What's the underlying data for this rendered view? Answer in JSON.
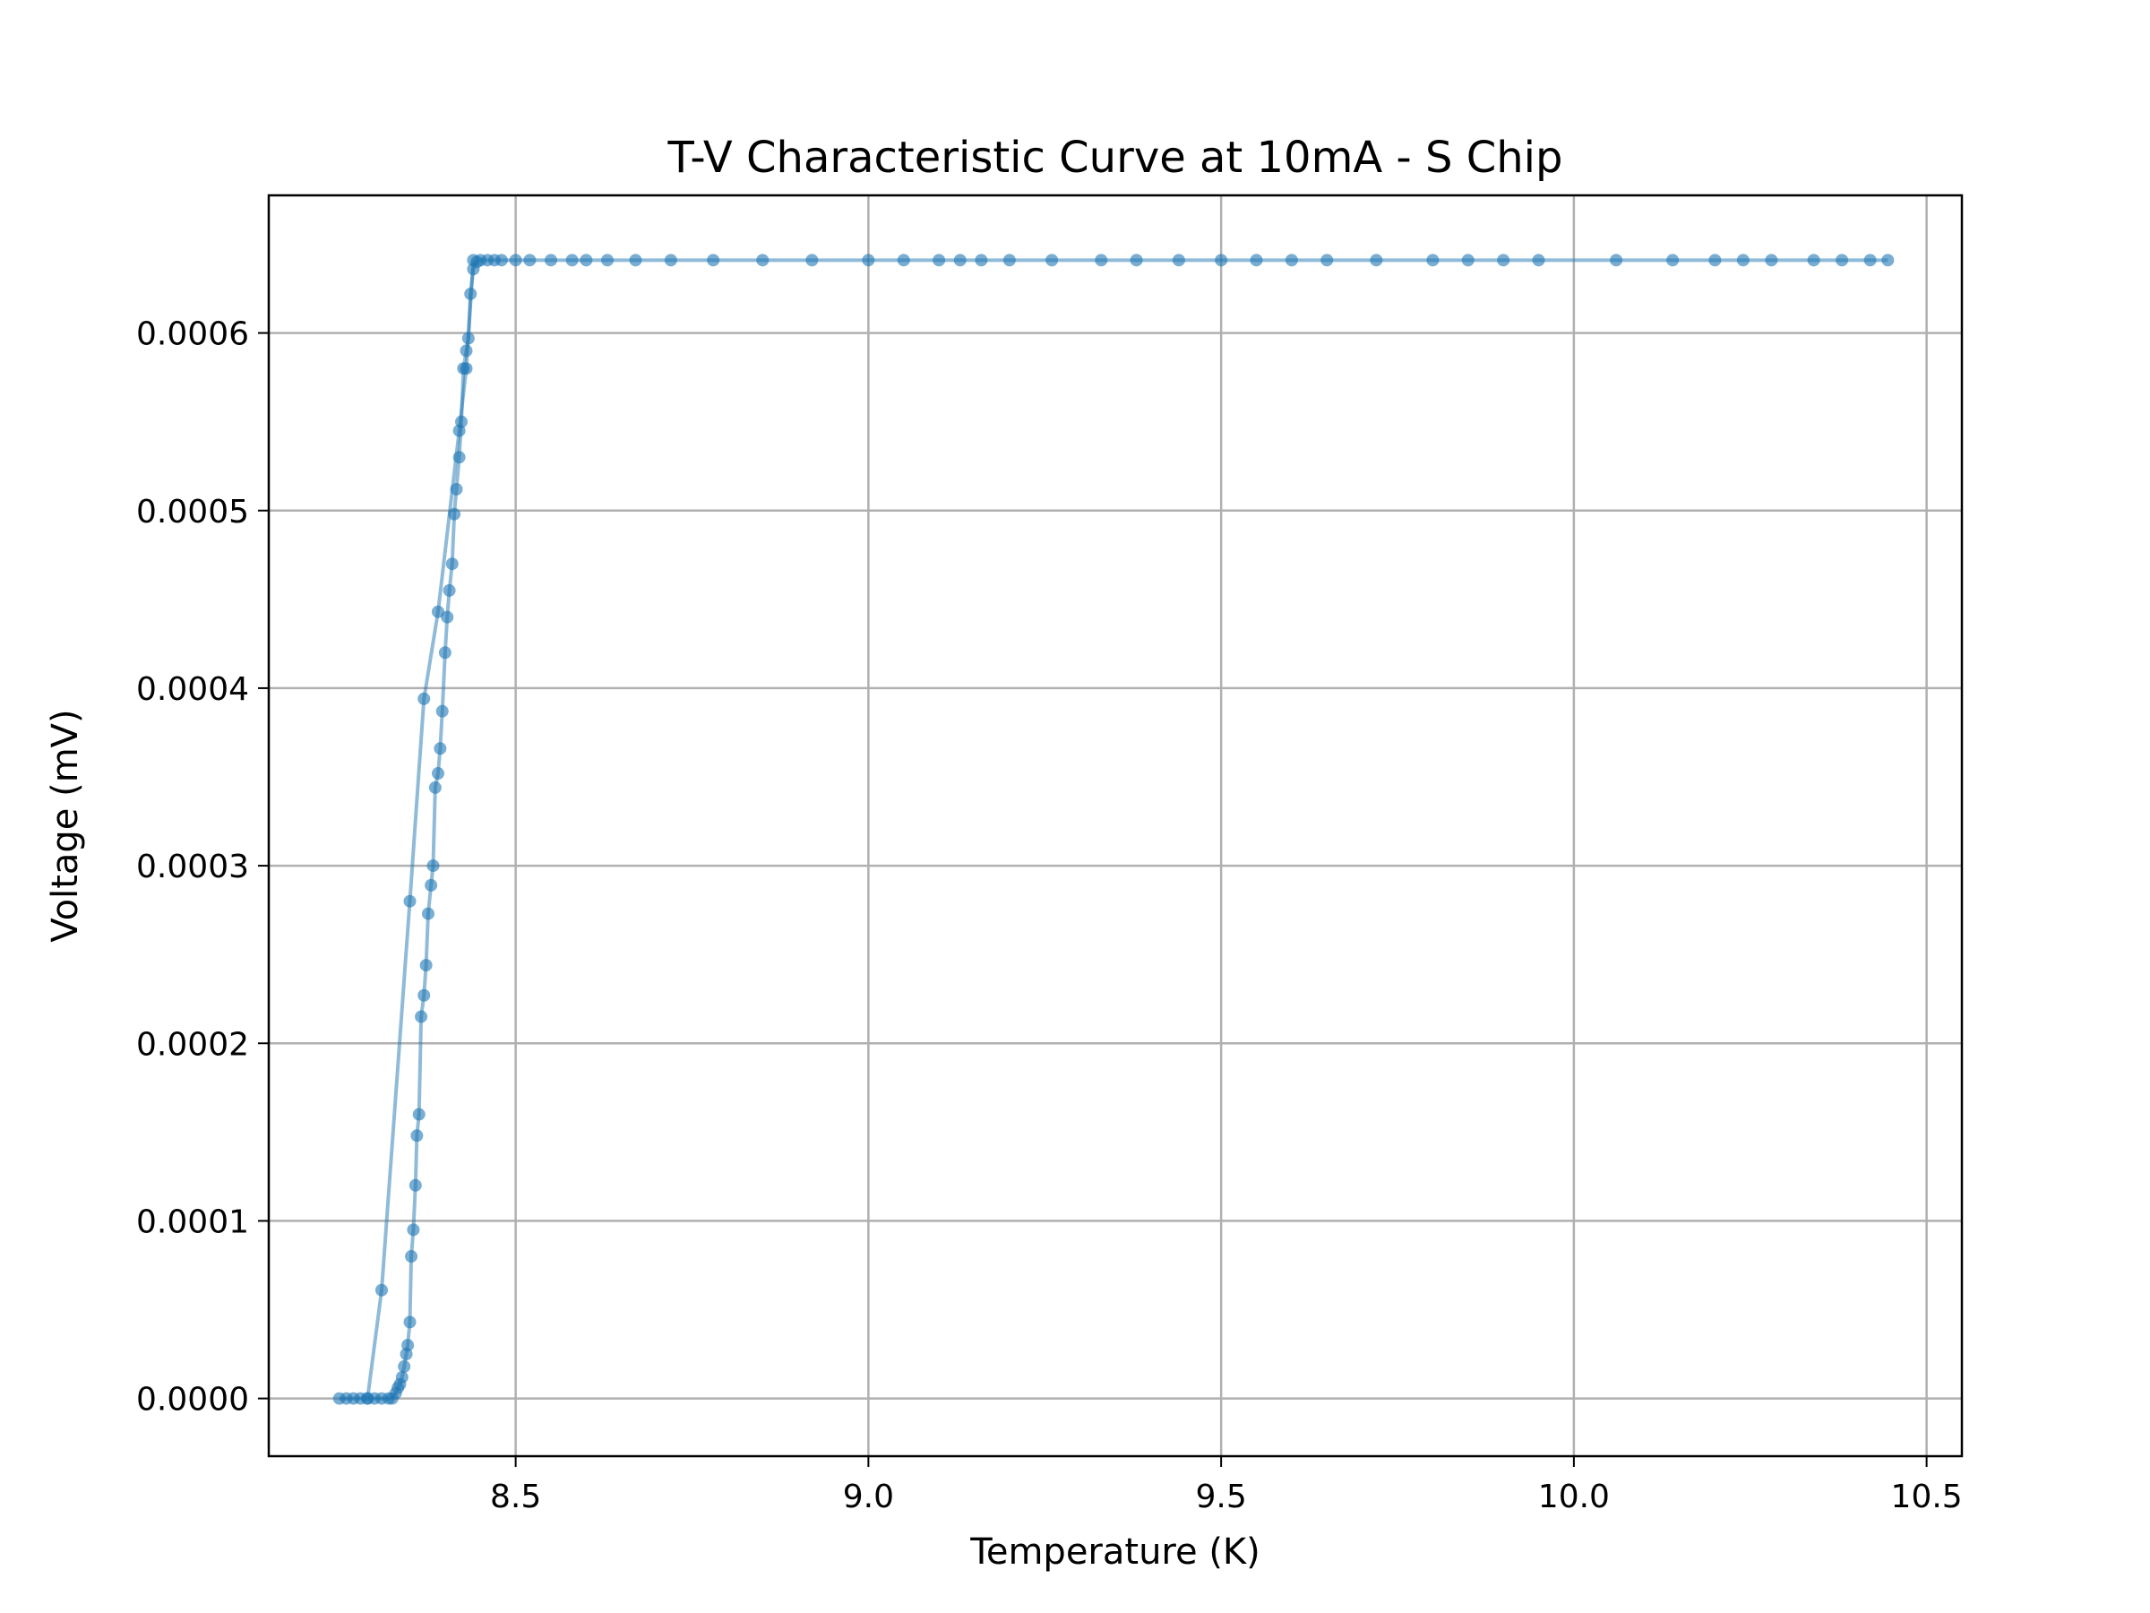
{
  "chart_data": {
    "type": "line",
    "title": "T-V Characteristic Curve at 10mA - S Chip",
    "xlabel": "Temperature (K)",
    "ylabel": "Voltage (mV)",
    "xlim": [
      8.15,
      10.55
    ],
    "ylim": [
      -3.25e-05,
      0.0006775
    ],
    "xticks": [
      {
        "value": 8.5,
        "label": "8.5"
      },
      {
        "value": 9.0,
        "label": "9.0"
      },
      {
        "value": 9.5,
        "label": "9.5"
      },
      {
        "value": 10.0,
        "label": "10.0"
      },
      {
        "value": 10.5,
        "label": "10.5"
      }
    ],
    "yticks": [
      {
        "value": 0.0,
        "label": "0.0000"
      },
      {
        "value": 0.0001,
        "label": "0.0001"
      },
      {
        "value": 0.0002,
        "label": "0.0002"
      },
      {
        "value": 0.0003,
        "label": "0.0003"
      },
      {
        "value": 0.0004,
        "label": "0.0004"
      },
      {
        "value": 0.0005,
        "label": "0.0005"
      },
      {
        "value": 0.0006,
        "label": "0.0006"
      }
    ],
    "grid": true,
    "legend": "none",
    "series": [
      {
        "color": "#1f77b4",
        "marker": "circle",
        "x": [
          8.25,
          8.26,
          8.27,
          8.28,
          8.29,
          8.3,
          8.31,
          8.32,
          8.325,
          8.33,
          8.333,
          8.336,
          8.339,
          8.342,
          8.345,
          8.347,
          8.35,
          8.352,
          8.355,
          8.358,
          8.36,
          8.363,
          8.366,
          8.37,
          8.373,
          8.376,
          8.38,
          8.383,
          8.386,
          8.39,
          8.393,
          8.396,
          8.4,
          8.403,
          8.406,
          8.41,
          8.413,
          8.416,
          8.42,
          8.423,
          8.426,
          8.43,
          8.433,
          8.436,
          8.44,
          8.445,
          8.45,
          8.46,
          8.47,
          8.48,
          8.5,
          8.52,
          8.55,
          8.58,
          8.6,
          8.63,
          8.67,
          8.72,
          8.78,
          8.85,
          8.92,
          9.0,
          9.05,
          9.1,
          9.13,
          9.16,
          9.2,
          9.26,
          9.33,
          9.38,
          9.44,
          9.5,
          9.55,
          9.6,
          9.65,
          9.72,
          9.8,
          9.85,
          9.9,
          9.95,
          10.06,
          10.14,
          10.2,
          10.24,
          10.28,
          10.34,
          10.38,
          10.42,
          10.445
        ],
        "y": [
          0.0,
          0.0,
          0.0,
          0.0,
          0.0,
          0.0,
          0.0,
          0.0,
          0.0,
          3e-06,
          6e-06,
          8e-06,
          1.2e-05,
          1.8e-05,
          2.5e-05,
          3e-05,
          4.3e-05,
          8e-05,
          9.5e-05,
          0.00012,
          0.000148,
          0.00016,
          0.000215,
          0.000227,
          0.000244,
          0.000273,
          0.000289,
          0.0003,
          0.000344,
          0.000352,
          0.000366,
          0.000387,
          0.00042,
          0.00044,
          0.000455,
          0.00047,
          0.000498,
          0.000512,
          0.00053,
          0.00055,
          0.00058,
          0.00059,
          0.000597,
          0.000622,
          0.000636,
          0.00064,
          0.000641,
          0.000641,
          0.000641,
          0.000641,
          0.000641,
          0.000641,
          0.000641,
          0.000641,
          0.000641,
          0.000641,
          0.000641,
          0.000641,
          0.000641,
          0.000641,
          0.000641,
          0.000641,
          0.000641,
          0.000641,
          0.000641,
          0.000641,
          0.000641,
          0.000641,
          0.000641,
          0.000641,
          0.000641,
          0.000641,
          0.000641,
          0.000641,
          0.000641,
          0.000641,
          0.000641,
          0.000641,
          0.000641,
          0.000641,
          0.000641,
          0.000641,
          0.000641,
          0.000641,
          0.000641,
          0.000641,
          0.000641,
          0.000641,
          0.000641
        ]
      },
      {
        "color": "#1f77b4",
        "marker": "circle",
        "x": [
          8.29,
          8.31,
          8.35,
          8.37,
          8.39,
          8.42,
          8.43,
          8.44
        ],
        "y": [
          0.0,
          6.1e-05,
          0.00028,
          0.000394,
          0.000443,
          0.000545,
          0.00058,
          0.000641
        ]
      }
    ]
  }
}
